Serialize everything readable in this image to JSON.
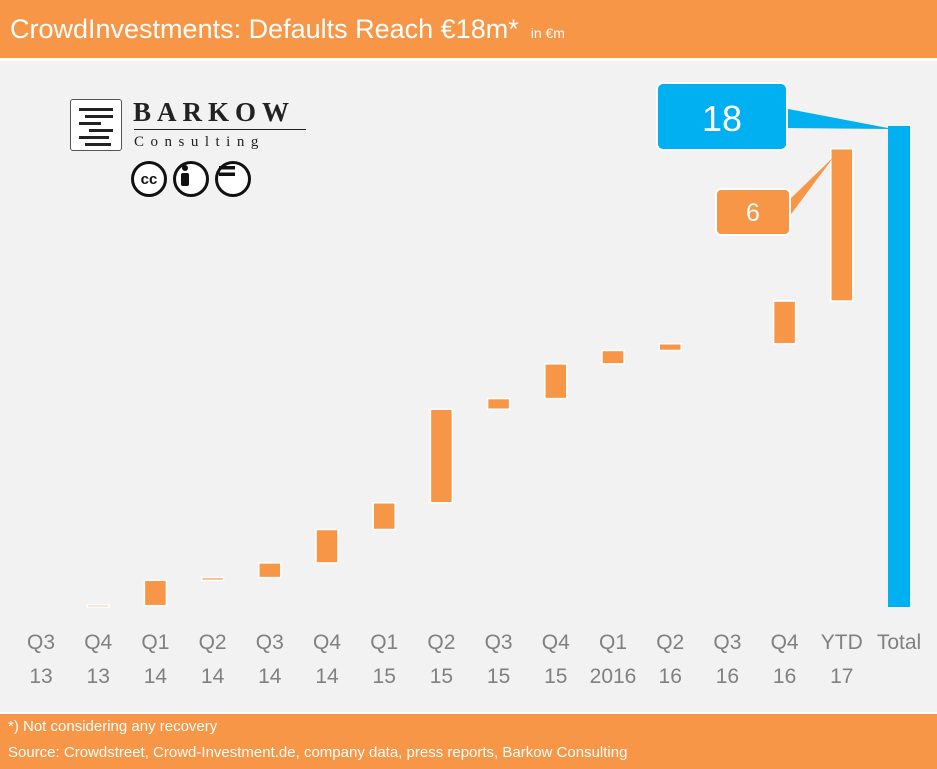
{
  "header": {
    "title": "CrowdInvestments: Defaults Reach €18m*",
    "unit": "in €m"
  },
  "logo": {
    "brand": "BARKOW",
    "sub": "Consulting"
  },
  "colors": {
    "accent": "#f79646",
    "total": "#00b0f0",
    "plot_bg": "#f2f2f2",
    "axis_text": "#808080"
  },
  "chart_data": {
    "type": "bar",
    "subtype": "waterfall",
    "categories": [
      [
        "Q3",
        "13"
      ],
      [
        "Q4",
        "13"
      ],
      [
        "Q1",
        "14"
      ],
      [
        "Q2",
        "14"
      ],
      [
        "Q3",
        "14"
      ],
      [
        "Q4",
        "14"
      ],
      [
        "Q1",
        "15"
      ],
      [
        "Q2",
        "15"
      ],
      [
        "Q3",
        "15"
      ],
      [
        "Q4",
        "15"
      ],
      [
        "Q1",
        "2016"
      ],
      [
        "Q2",
        "16"
      ],
      [
        "Q3",
        "16"
      ],
      [
        "Q4",
        "16"
      ],
      [
        "YTD",
        "17"
      ],
      [
        "Total",
        ""
      ]
    ],
    "increments": [
      0,
      0.05,
      0.95,
      0.1,
      0.55,
      1.25,
      1.0,
      3.5,
      0.4,
      1.3,
      0.5,
      0.25,
      0,
      1.6,
      5.7,
      null
    ],
    "total": 18,
    "ylim": [
      0,
      18
    ],
    "callouts": [
      {
        "category_index": 14,
        "text": "6"
      },
      {
        "category_index": 15,
        "text": "18"
      }
    ]
  },
  "footer": {
    "note": "*) Not considering any recovery",
    "source": "Source: Crowdstreet, Crowd-Investment.de, company data, press reports, Barkow Consulting"
  }
}
